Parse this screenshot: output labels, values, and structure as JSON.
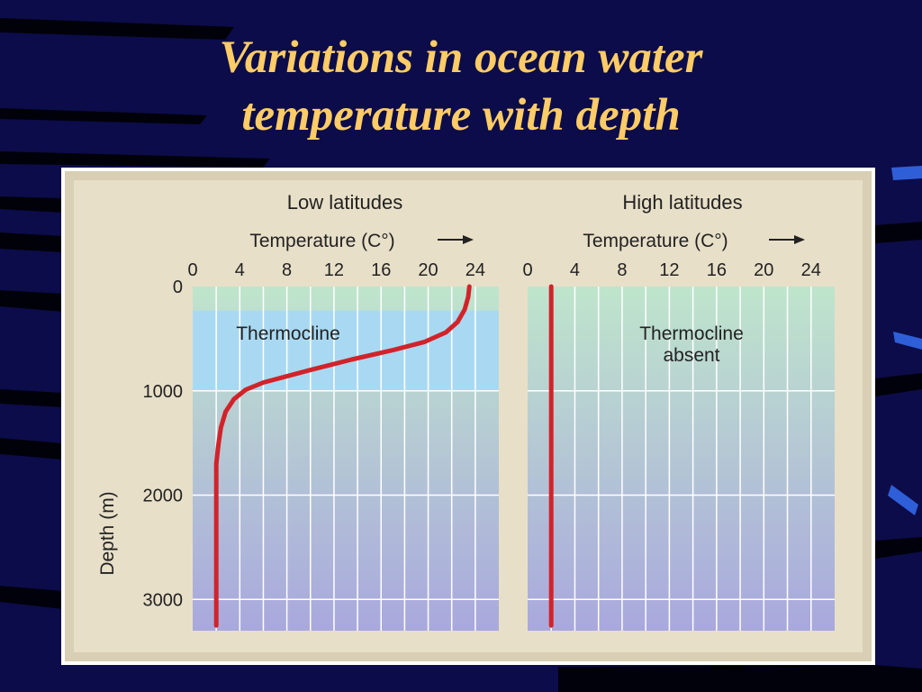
{
  "slide": {
    "title_line1": "Variations in ocean water",
    "title_line2": "temperature with depth"
  },
  "colors": {
    "background": "#0c0c4a",
    "title": "#ffcc66",
    "frame": "#e8dfc8",
    "curve": "#d2232a",
    "thermocline_band": "#a9d9f2"
  },
  "chart_data": [
    {
      "type": "line",
      "title": "Low latitudes",
      "xlabel": "Temperature (C°)",
      "ylabel": "Depth (m)",
      "xlim": [
        0,
        26
      ],
      "ylim": [
        3300,
        0
      ],
      "xticks": [
        0,
        4,
        8,
        12,
        16,
        20,
        24
      ],
      "yticks": [
        0,
        1000,
        2000,
        3000
      ],
      "grid": true,
      "annotation": "Thermocline",
      "thermocline_band": [
        230,
        1000
      ],
      "series": [
        {
          "x": [
            23.5,
            23.4,
            23.1,
            22.5,
            21.5,
            19.7,
            17.0,
            13.5,
            10.0,
            8.0,
            6.0,
            4.5,
            3.5,
            2.8,
            2.4,
            2.2,
            2.0,
            2.0,
            2.0,
            2.0
          ],
          "y": [
            0,
            100,
            220,
            340,
            440,
            530,
            610,
            700,
            800,
            860,
            920,
            990,
            1080,
            1200,
            1350,
            1500,
            1700,
            2200,
            2800,
            3250
          ]
        }
      ]
    },
    {
      "type": "line",
      "title": "High latitudes",
      "xlabel": "Temperature (C°)",
      "xlim": [
        0,
        26
      ],
      "ylim": [
        3300,
        0
      ],
      "xticks": [
        0,
        4,
        8,
        12,
        16,
        20,
        24
      ],
      "grid": true,
      "annotation_line1": "Thermocline",
      "annotation_line2": "absent",
      "series": [
        {
          "x": [
            2,
            2
          ],
          "y": [
            0,
            3250
          ]
        }
      ]
    }
  ]
}
